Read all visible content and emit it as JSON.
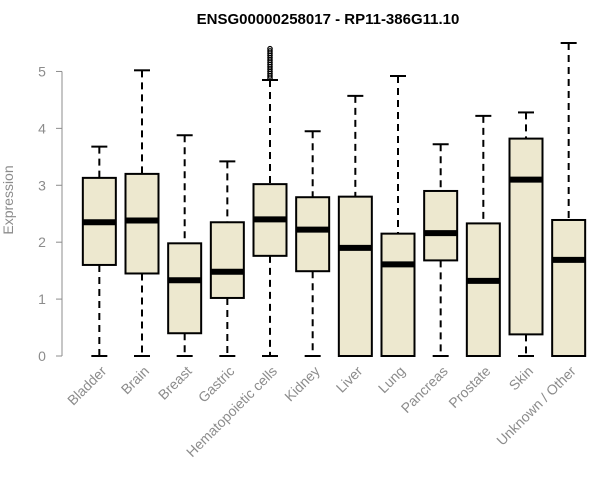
{
  "chart_data": {
    "type": "box",
    "title": "ENSG00000258017 - RP11-386G11.10",
    "ylabel": "Expression",
    "xlabel": "",
    "ylim": [
      0,
      5.5
    ],
    "yticks": [
      "0",
      "1",
      "2",
      "3",
      "4",
      "5"
    ],
    "grid": false,
    "colors": {
      "box_fill": "#ede8cf",
      "stroke": "#000000",
      "axis": "#8c8c8c"
    },
    "categories": [
      "Bladder",
      "Brain",
      "Breast",
      "Gastric",
      "Hematopoietic cells",
      "Kidney",
      "Liver",
      "Lung",
      "Pancreas",
      "Prostate",
      "Skin",
      "Unknown / Other"
    ],
    "boxes": [
      {
        "min": 0,
        "q1": 1.6,
        "median": 2.35,
        "q3": 3.13,
        "max": 3.68
      },
      {
        "min": 0,
        "q1": 1.45,
        "median": 2.38,
        "q3": 3.2,
        "max": 5.02
      },
      {
        "min": 0,
        "q1": 0.4,
        "median": 1.33,
        "q3": 1.98,
        "max": 3.88
      },
      {
        "min": 0,
        "q1": 1.02,
        "median": 1.48,
        "q3": 2.35,
        "max": 3.42
      },
      {
        "min": 0,
        "q1": 1.76,
        "median": 2.4,
        "q3": 3.02,
        "max": 4.85,
        "outliers": [
          4.88,
          4.92,
          4.96,
          5.0,
          5.04,
          5.08,
          5.12,
          5.16,
          5.2,
          5.24,
          5.28,
          5.32,
          5.36,
          5.4
        ]
      },
      {
        "min": 0,
        "q1": 1.49,
        "median": 2.22,
        "q3": 2.79,
        "max": 3.95
      },
      {
        "min": 0,
        "q1": 0,
        "median": 1.9,
        "q3": 2.8,
        "max": 4.57
      },
      {
        "min": 0,
        "q1": 0,
        "median": 1.61,
        "q3": 2.15,
        "max": 4.92
      },
      {
        "min": 0,
        "q1": 1.68,
        "median": 2.16,
        "q3": 2.9,
        "max": 3.72
      },
      {
        "min": 0,
        "q1": 0,
        "median": 1.32,
        "q3": 2.33,
        "max": 4.22
      },
      {
        "min": 0,
        "q1": 0.38,
        "median": 3.1,
        "q3": 3.82,
        "max": 4.28
      },
      {
        "min": 0,
        "q1": 0,
        "median": 1.69,
        "q3": 2.39,
        "max": 5.5
      }
    ]
  }
}
